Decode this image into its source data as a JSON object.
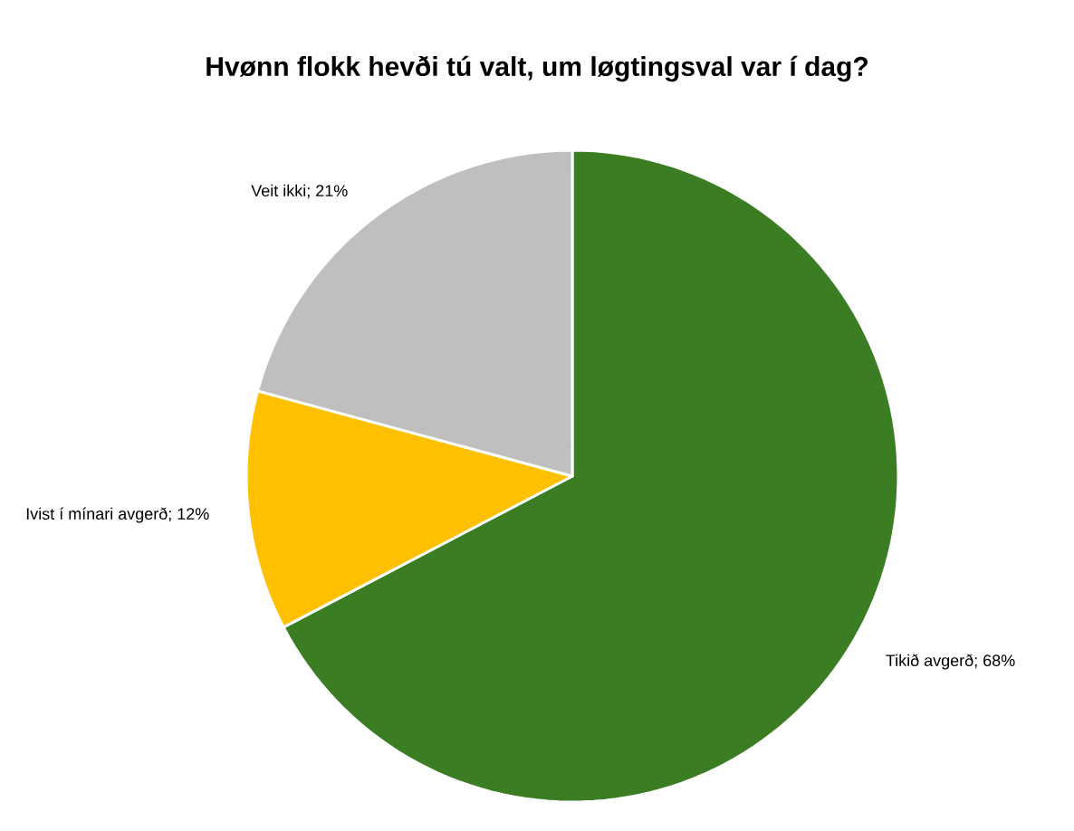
{
  "chart_data": {
    "type": "pie",
    "title": "Hvønn flokk hevði tú valt, um løgtingsval var í dag?",
    "categories": [
      "Tikið avgerð",
      "Ivist í mínari avgerð",
      "Veit ikki"
    ],
    "values": [
      68,
      12,
      21
    ],
    "value_labels": [
      "; 68%",
      "; 12%",
      "; 21%"
    ],
    "colors": [
      "#3a7d23",
      "#ffc000",
      "#bfbfbf"
    ]
  }
}
